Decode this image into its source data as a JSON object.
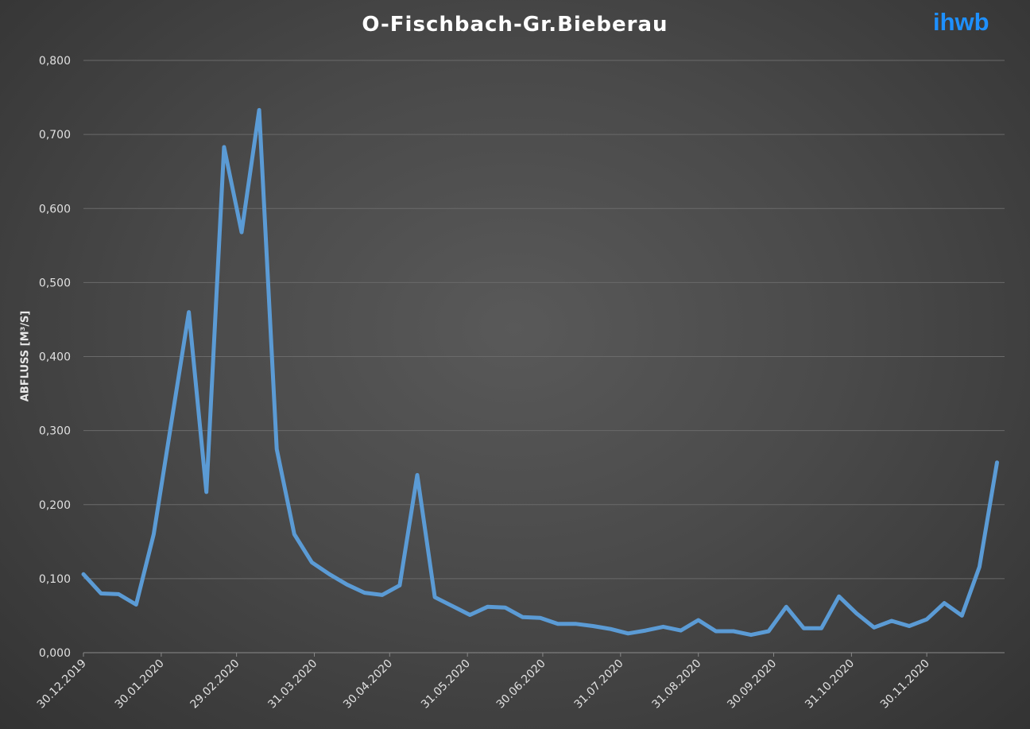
{
  "logo": {
    "text": "ihwb",
    "color": "#1e90ff"
  },
  "chart_data": {
    "type": "line",
    "title": "O-Fischbach-Gr.Bieberau",
    "xlabel": "",
    "ylabel": "ABFLUSS [M³/S]",
    "ylim": [
      0,
      0.8
    ],
    "y_ticks": [
      0,
      0.1,
      0.2,
      0.3,
      0.4,
      0.5,
      0.6,
      0.7,
      0.8
    ],
    "y_tick_labels": [
      "0,000",
      "0,100",
      "0,200",
      "0,300",
      "0,400",
      "0,500",
      "0,600",
      "0,700",
      "0,800"
    ],
    "x_range": [
      "2019-12-30",
      "2020-12-31"
    ],
    "x_ticks": [
      "2019-12-30",
      "2020-01-30",
      "2020-02-29",
      "2020-03-31",
      "2020-04-30",
      "2020-05-31",
      "2020-06-30",
      "2020-07-31",
      "2020-08-31",
      "2020-09-30",
      "2020-10-31",
      "2020-11-30"
    ],
    "x_tick_labels": [
      "30.12.2019",
      "30.01.2020",
      "29.02.2020",
      "31.03.2020",
      "30.04.2020",
      "31.05.2020",
      "30.06.2020",
      "31.07.2020",
      "31.08.2020",
      "30.09.2020",
      "31.10.2020",
      "30.11.2020"
    ],
    "grid": true,
    "line_color": "#5b9bd5",
    "series": [
      {
        "x": [
          "2019-12-30",
          "2020-01-06",
          "2020-01-13",
          "2020-01-20",
          "2020-01-27",
          "2020-02-03",
          "2020-02-10",
          "2020-02-17",
          "2020-02-24",
          "2020-03-02",
          "2020-03-09",
          "2020-03-16",
          "2020-03-23",
          "2020-03-30",
          "2020-04-06",
          "2020-04-13",
          "2020-04-20",
          "2020-04-27",
          "2020-05-04",
          "2020-05-11",
          "2020-05-18",
          "2020-05-25",
          "2020-06-01",
          "2020-06-08",
          "2020-06-15",
          "2020-06-22",
          "2020-06-29",
          "2020-07-06",
          "2020-07-13",
          "2020-07-20",
          "2020-07-27",
          "2020-08-03",
          "2020-08-10",
          "2020-08-17",
          "2020-08-24",
          "2020-08-31",
          "2020-09-07",
          "2020-09-14",
          "2020-09-21",
          "2020-09-28",
          "2020-10-05",
          "2020-10-12",
          "2020-10-19",
          "2020-10-26",
          "2020-11-02",
          "2020-11-09",
          "2020-11-16",
          "2020-11-23",
          "2020-11-30",
          "2020-12-07",
          "2020-12-14",
          "2020-12-21",
          "2020-12-28"
        ],
        "y": [
          0.106,
          0.08,
          0.079,
          0.065,
          0.16,
          0.31,
          0.46,
          0.217,
          0.683,
          0.568,
          0.733,
          0.275,
          0.16,
          0.122,
          0.106,
          0.092,
          0.081,
          0.078,
          0.091,
          0.24,
          0.075,
          0.063,
          0.051,
          0.062,
          0.061,
          0.048,
          0.047,
          0.039,
          0.039,
          0.036,
          0.032,
          0.026,
          0.03,
          0.035,
          0.03,
          0.044,
          0.029,
          0.029,
          0.024,
          0.029,
          0.062,
          0.033,
          0.033,
          0.076,
          0.053,
          0.034,
          0.043,
          0.036,
          0.045,
          0.067,
          0.05,
          0.116,
          0.257
        ]
      }
    ]
  }
}
